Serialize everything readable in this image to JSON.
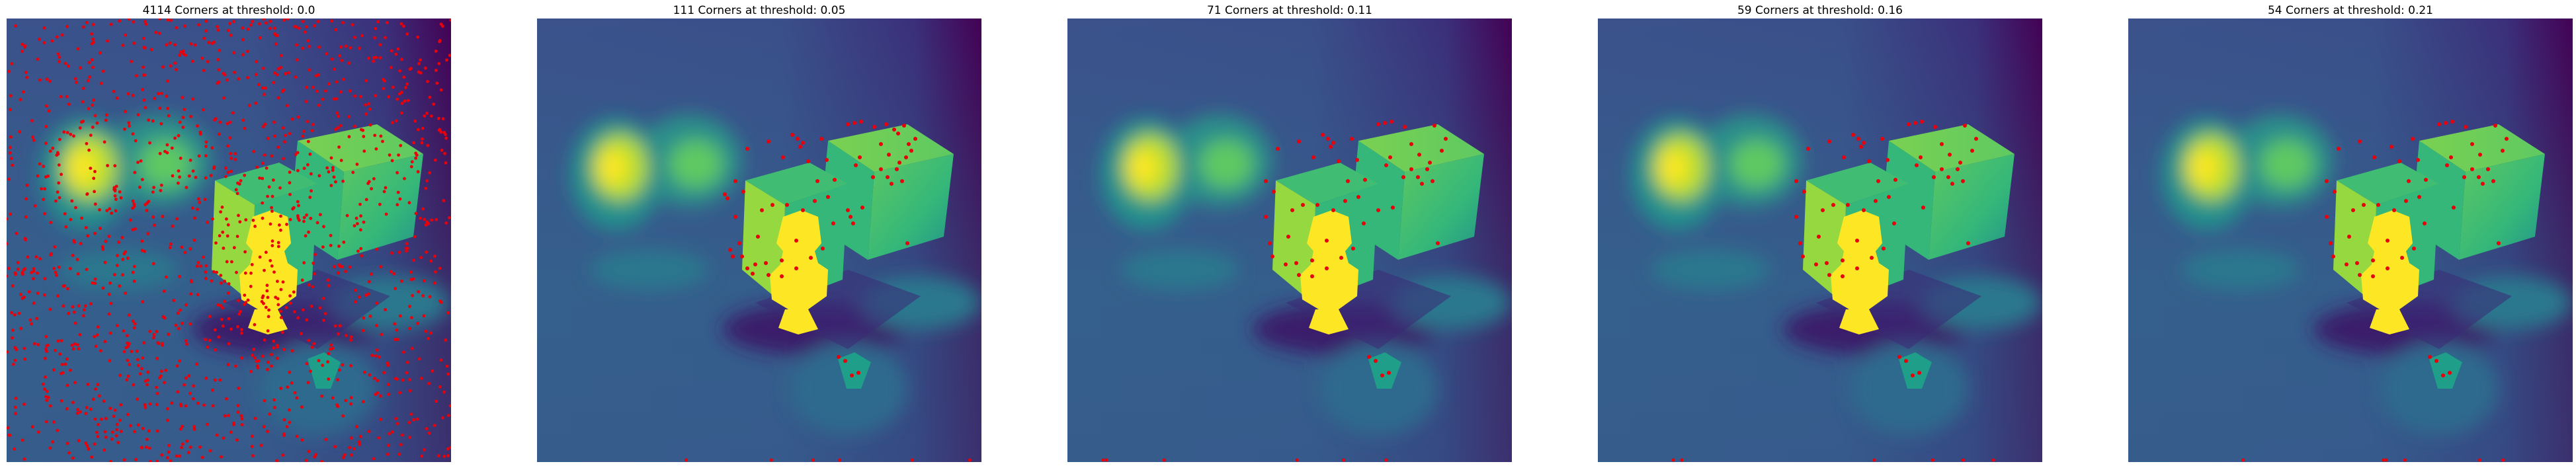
{
  "panels": [
    {
      "title": "4114 Corners at threshold: 0.0",
      "corner_count": 4114,
      "threshold": 0.0,
      "marker_color": "#e8000b"
    },
    {
      "title": "111 Corners at threshold: 0.05",
      "corner_count": 111,
      "threshold": 0.05,
      "marker_color": "#e8000b"
    },
    {
      "title": "71 Corners at threshold: 0.11",
      "corner_count": 71,
      "threshold": 0.11,
      "marker_color": "#e8000b"
    },
    {
      "title": "59 Corners at threshold: 0.16",
      "corner_count": 59,
      "threshold": 0.16,
      "marker_color": "#e8000b"
    },
    {
      "title": "54 Corners at threshold: 0.21",
      "corner_count": 54,
      "threshold": 0.21,
      "marker_color": "#e8000b"
    }
  ],
  "colormap": "viridis"
}
